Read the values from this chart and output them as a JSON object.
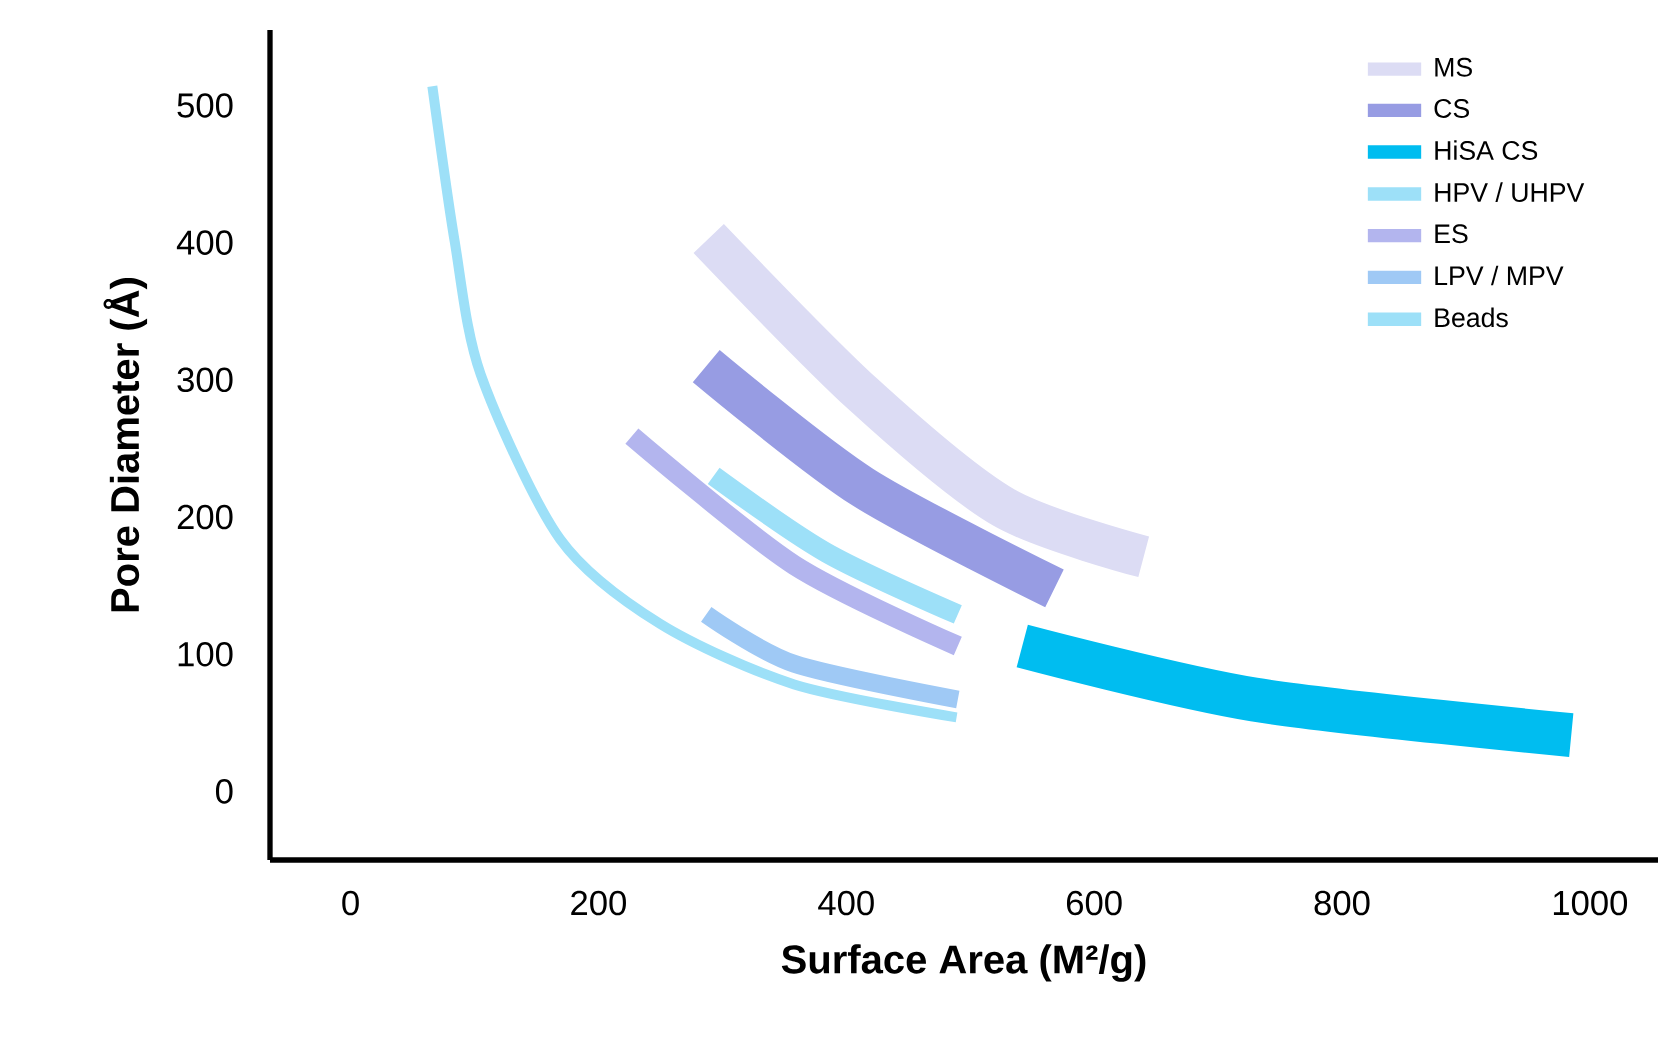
{
  "chart_data": {
    "type": "line",
    "xlabel": "Surface Area (M²/g)",
    "ylabel": "Pore Diameter (Å)",
    "xlim": [
      -65,
      1055
    ],
    "ylim": [
      -50,
      555
    ],
    "xticks": [
      0,
      200,
      400,
      600,
      800,
      1000
    ],
    "yticks": [
      0,
      100,
      200,
      300,
      400,
      500
    ],
    "grid": false,
    "legend": "top right",
    "marker": "none",
    "line_style": "solid",
    "series": [
      {
        "name": "MS",
        "color": "#dcdcf4",
        "x": [
          289,
          413,
          527,
          640
        ],
        "values": [
          403,
          290,
          207,
          171
        ]
      },
      {
        "name": "CS",
        "color": "#979ce3",
        "x": [
          287,
          413,
          568
        ],
        "values": [
          310,
          222,
          148
        ]
      },
      {
        "name": "HiSA CS",
        "color": "#00bdf0",
        "x": [
          542,
          729,
          985
        ],
        "values": [
          106,
          67,
          41
        ]
      },
      {
        "name": "HPV / UHPV",
        "color": "#9de0f8",
        "x": [
          293,
          384,
          490
        ],
        "values": [
          230,
          174,
          129
        ]
      },
      {
        "name": "ES",
        "color": "#b3b5ee",
        "x": [
          227,
          358,
          490
        ],
        "values": [
          259,
          165,
          106
        ]
      },
      {
        "name": "LPV / MPV",
        "color": "#9fc9f5",
        "x": [
          287,
          358,
          490
        ],
        "values": [
          129,
          93,
          67
        ]
      },
      {
        "name": "Beads",
        "color": "#9de0f8",
        "x": [
          66,
          84,
          105,
          169,
          250,
          358,
          489
        ],
        "values": [
          514,
          401,
          304,
          184,
          122,
          78,
          54
        ]
      }
    ]
  }
}
